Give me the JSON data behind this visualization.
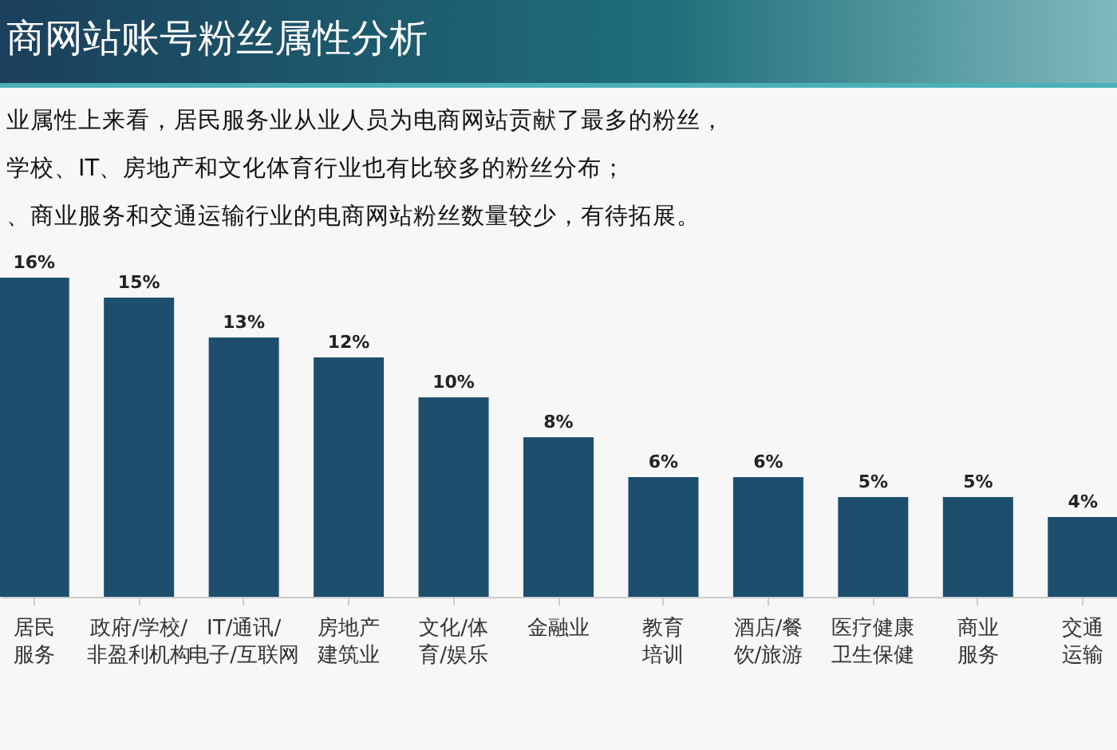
{
  "chart_data": {
    "type": "bar",
    "title": "商网站账号粉丝属性分析",
    "annotations": [
      "业属性上来看，居民服务业从业人员为电商网站贡献了最多的粉丝，",
      "学校、IT、房地产和文化体育行业也有比较多的粉丝分布；",
      "、商业服务和交通运输行业的电商网站粉丝数量较少，有待拓展。"
    ],
    "categories": [
      "居民服务",
      "政府/学校/非盈利机构",
      "IT/通讯/电子/互联网",
      "房地产建筑业",
      "文化/体育/娱乐",
      "金融业",
      "教育培训",
      "酒店/餐饮/旅游",
      "医疗健康卫生保健",
      "商业服务",
      "交通运输"
    ],
    "values": [
      16,
      15,
      13,
      12,
      10,
      8,
      6,
      6,
      5,
      5,
      4
    ],
    "value_labels": [
      "16%",
      "15%",
      "13%",
      "12%",
      "10%",
      "8%",
      "6%",
      "6%",
      "5%",
      "5%",
      "4%"
    ],
    "color": "#1d4e6e"
  }
}
